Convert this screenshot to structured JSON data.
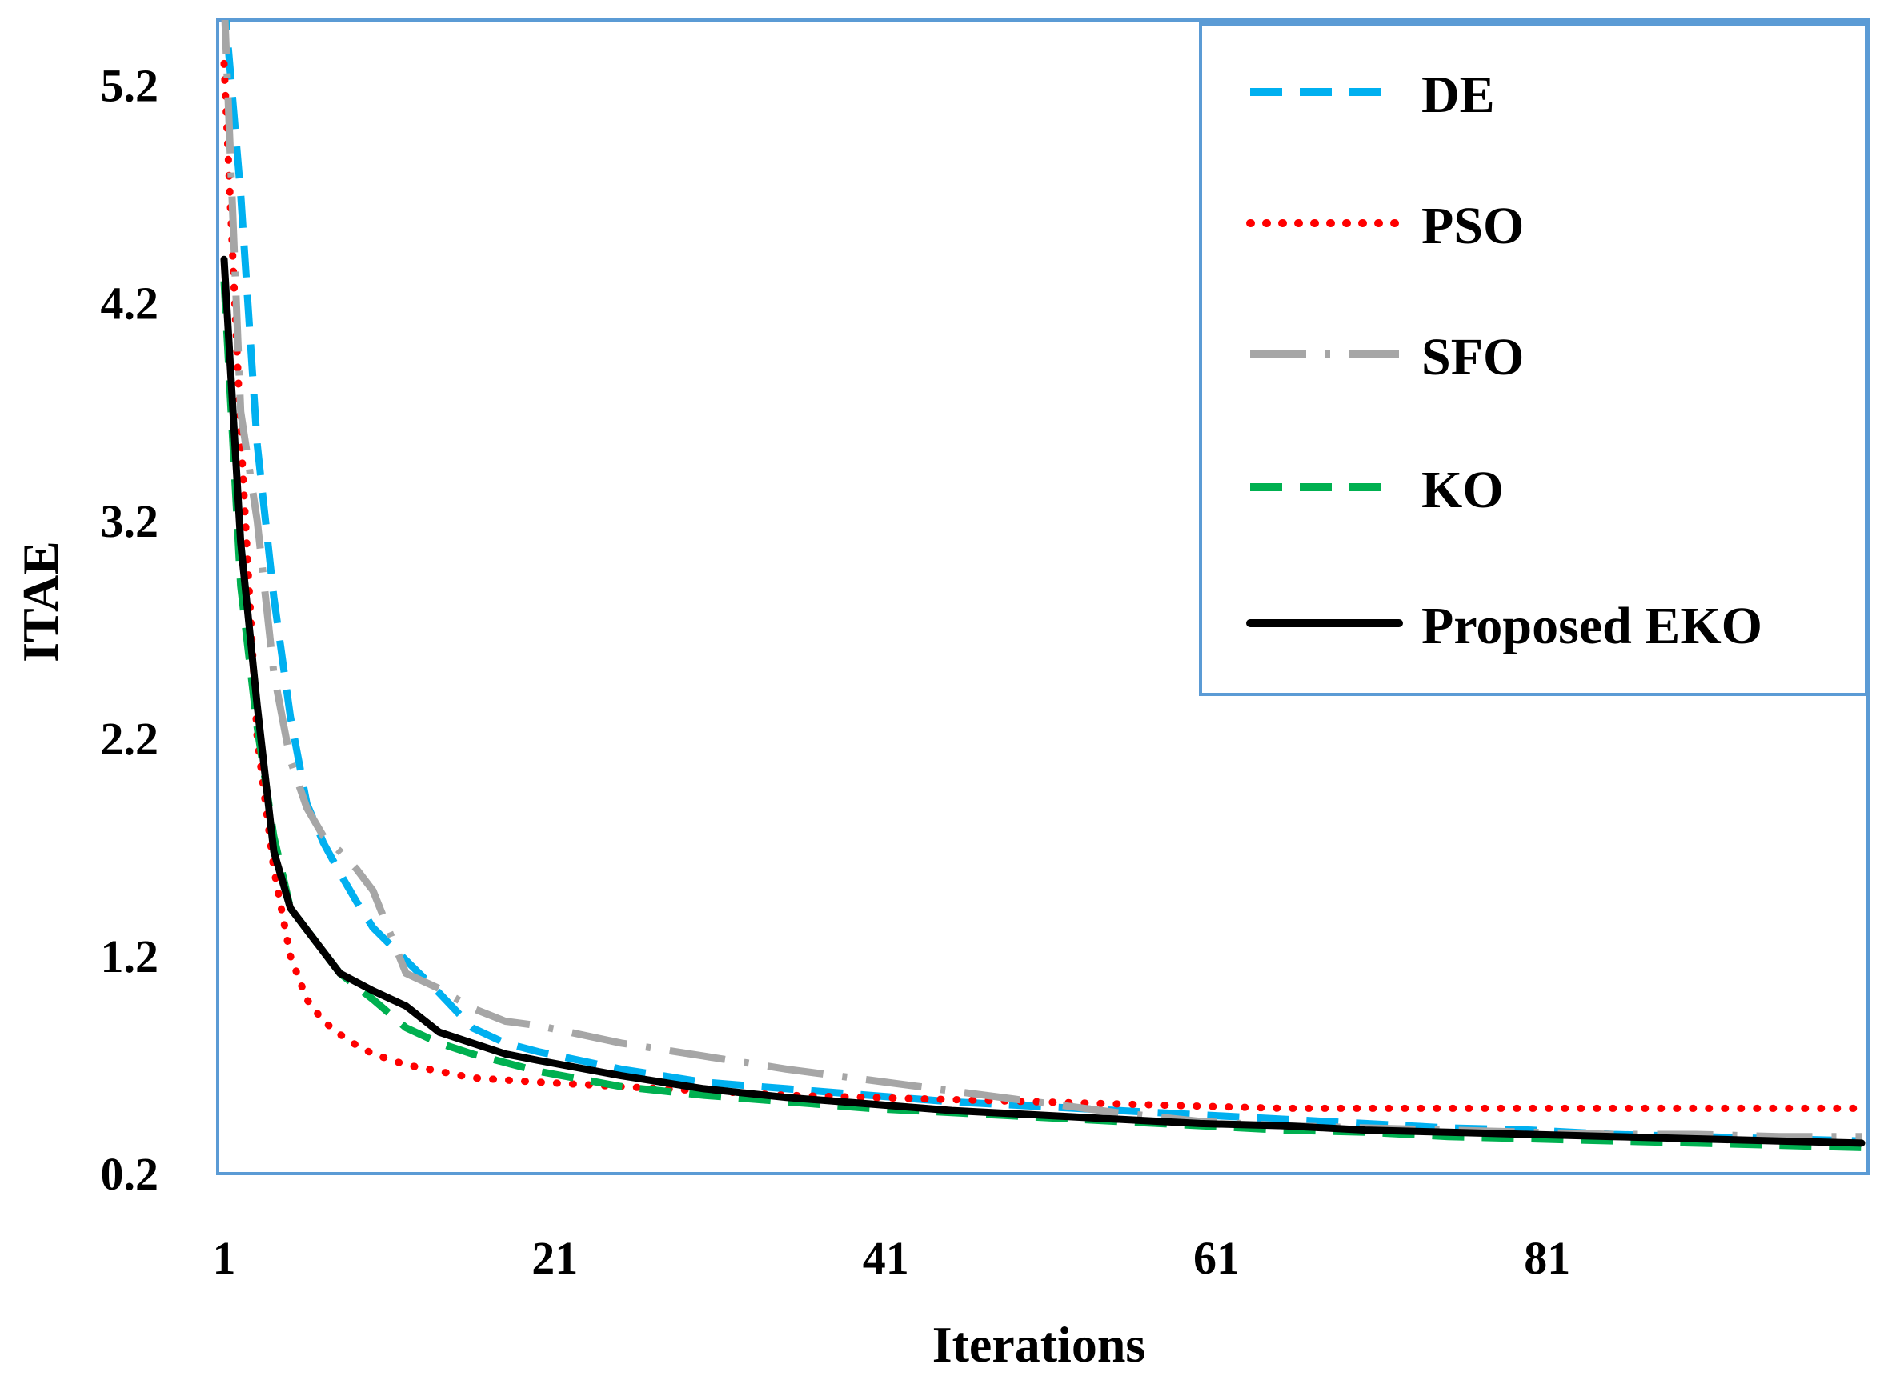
{
  "chart_data": {
    "type": "line",
    "title": "",
    "xlabel": "Iterations",
    "ylabel": "ITAE",
    "xlim": [
      1,
      100
    ],
    "ylim": [
      0.2,
      5.5
    ],
    "x_ticks": [
      1,
      21,
      41,
      61,
      81
    ],
    "x_tick_labels": [
      "1",
      "21",
      "41",
      "61",
      "81"
    ],
    "y_ticks": [
      0.2,
      1.2,
      2.2,
      3.2,
      4.2,
      5.2
    ],
    "y_tick_labels": [
      "0.2",
      "1.2",
      "2.2",
      "3.2",
      "4.2",
      "5.2"
    ],
    "legend_position": "top-right",
    "series": [
      {
        "name": "DE",
        "color": "#00B0F0",
        "style": "dashed",
        "x": [
          1,
          2,
          3,
          4,
          5,
          6,
          7,
          8,
          9,
          10,
          12,
          14,
          16,
          18,
          20,
          25,
          30,
          35,
          40,
          45,
          50,
          55,
          60,
          65,
          70,
          75,
          80,
          85,
          90,
          95,
          100
        ],
        "y": [
          5.6,
          4.7,
          3.55,
          2.85,
          2.3,
          1.9,
          1.72,
          1.58,
          1.45,
          1.33,
          1.18,
          1.03,
          0.87,
          0.8,
          0.76,
          0.68,
          0.62,
          0.59,
          0.56,
          0.53,
          0.51,
          0.49,
          0.47,
          0.45,
          0.43,
          0.41,
          0.4,
          0.38,
          0.37,
          0.36,
          0.35
        ]
      },
      {
        "name": "PSO",
        "color": "#FF0000",
        "style": "dotted",
        "x": [
          1,
          2,
          3,
          4,
          5,
          6,
          7,
          8,
          9,
          10,
          12,
          14,
          16,
          18,
          20,
          25,
          30,
          35,
          40,
          45,
          50,
          55,
          60,
          65,
          70,
          75,
          80,
          85,
          90,
          95,
          100
        ],
        "y": [
          5.3,
          3.6,
          2.2,
          1.6,
          1.2,
          1.0,
          0.9,
          0.84,
          0.79,
          0.75,
          0.7,
          0.67,
          0.64,
          0.63,
          0.62,
          0.6,
          0.58,
          0.56,
          0.55,
          0.54,
          0.53,
          0.52,
          0.51,
          0.5,
          0.5,
          0.5,
          0.5,
          0.5,
          0.5,
          0.5,
          0.5
        ]
      },
      {
        "name": "SFO",
        "color": "#A6A6A6",
        "style": "long-dash-dot",
        "x": [
          1,
          2,
          3,
          4,
          5,
          6,
          7,
          8,
          9,
          10,
          12,
          14,
          16,
          18,
          20,
          25,
          30,
          35,
          40,
          45,
          50,
          55,
          60,
          65,
          70,
          75,
          80,
          85,
          90,
          95,
          100
        ],
        "y": [
          5.6,
          3.7,
          3.2,
          2.5,
          2.1,
          1.88,
          1.75,
          1.68,
          1.6,
          1.5,
          1.12,
          1.05,
          0.96,
          0.9,
          0.88,
          0.8,
          0.74,
          0.68,
          0.63,
          0.58,
          0.53,
          0.48,
          0.44,
          0.42,
          0.41,
          0.4,
          0.39,
          0.38,
          0.38,
          0.37,
          0.37
        ]
      },
      {
        "name": "KO",
        "color": "#00B050",
        "style": "dashed",
        "x": [
          1,
          2,
          3,
          4,
          5,
          6,
          7,
          8,
          9,
          10,
          12,
          14,
          16,
          18,
          20,
          25,
          30,
          35,
          40,
          45,
          50,
          55,
          60,
          65,
          70,
          75,
          80,
          85,
          90,
          95,
          100
        ],
        "y": [
          4.3,
          2.9,
          2.25,
          1.75,
          1.42,
          1.32,
          1.22,
          1.12,
          1.06,
          1.0,
          0.87,
          0.8,
          0.75,
          0.71,
          0.67,
          0.6,
          0.56,
          0.53,
          0.5,
          0.48,
          0.46,
          0.44,
          0.42,
          0.4,
          0.39,
          0.37,
          0.36,
          0.35,
          0.34,
          0.33,
          0.32
        ]
      },
      {
        "name": "Proposed EKO",
        "color": "#000000",
        "style": "solid",
        "x": [
          1,
          2,
          3,
          4,
          5,
          6,
          7,
          8,
          9,
          10,
          12,
          14,
          16,
          18,
          20,
          25,
          30,
          35,
          40,
          45,
          50,
          55,
          60,
          65,
          70,
          75,
          80,
          85,
          90,
          95,
          100
        ],
        "y": [
          4.4,
          3.1,
          2.35,
          1.68,
          1.42,
          1.32,
          1.22,
          1.12,
          1.08,
          1.04,
          0.97,
          0.85,
          0.8,
          0.75,
          0.72,
          0.65,
          0.59,
          0.55,
          0.52,
          0.49,
          0.47,
          0.45,
          0.43,
          0.42,
          0.4,
          0.39,
          0.38,
          0.37,
          0.36,
          0.35,
          0.34
        ]
      }
    ]
  }
}
